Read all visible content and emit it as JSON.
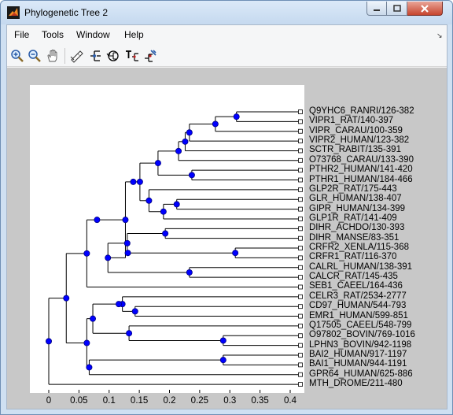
{
  "window": {
    "title": "Phylogenetic Tree 2"
  },
  "menu": {
    "items": [
      "File",
      "Tools",
      "Window",
      "Help"
    ]
  },
  "toolbar": {
    "tools": [
      "zoom-in-icon",
      "zoom-out-icon",
      "pan-hand-icon",
      "inspect-icon",
      "collapse-icon",
      "rotate-icon",
      "rename-icon",
      "prune-icon"
    ]
  },
  "tree": {
    "leaves": [
      "Q9YHC6_RANRI/126-382",
      "VIPR1_RAT/140-397",
      "VIPR_CARAU/100-359",
      "VIPR2_HUMAN/123-382",
      "SCTR_RABIT/135-391",
      "O73768_CARAU/133-390",
      "PTHR2_HUMAN/141-420",
      "PTHR1_HUMAN/184-466",
      "GLP2R_RAT/175-443",
      "GLR_HUMAN/138-407",
      "GIPR_HUMAN/134-399",
      "GLP1R_RAT/141-409",
      "DIHR_ACHDO/130-393",
      "DIHR_MANSE/83-351",
      "CRFR2_XENLA/115-368",
      "CRFR1_RAT/116-370",
      "CALRL_HUMAN/138-391",
      "CALCR_RAT/145-435",
      "SEB1_CAEEL/164-436",
      "CELR3_RAT/2534-2777",
      "CD97_HUMAN/544-793",
      "EMR1_HUMAN/599-851",
      "Q17505_CAEEL/548-799",
      "O97802_BOVIN/769-1016",
      "LPHN3_BOVIN/942-1198",
      "BAI2_HUMAN/917-1197",
      "BAI1_HUMAN/944-1191",
      "GPR64_HUMAN/625-886",
      "MTH_DROME/211-480"
    ],
    "x_ticks": [
      "0",
      "0.05",
      "0.1",
      "0.15",
      "0.2",
      "0.25",
      "0.3",
      "0.35",
      "0.4"
    ],
    "colors": {
      "branch": "#000000",
      "node_fill": "#0000ff",
      "node_stroke": "#000080",
      "leaf_fill": "#ffffff",
      "axes_bg": "#ffffff",
      "figure_bg": "#c8c8c8"
    }
  }
}
